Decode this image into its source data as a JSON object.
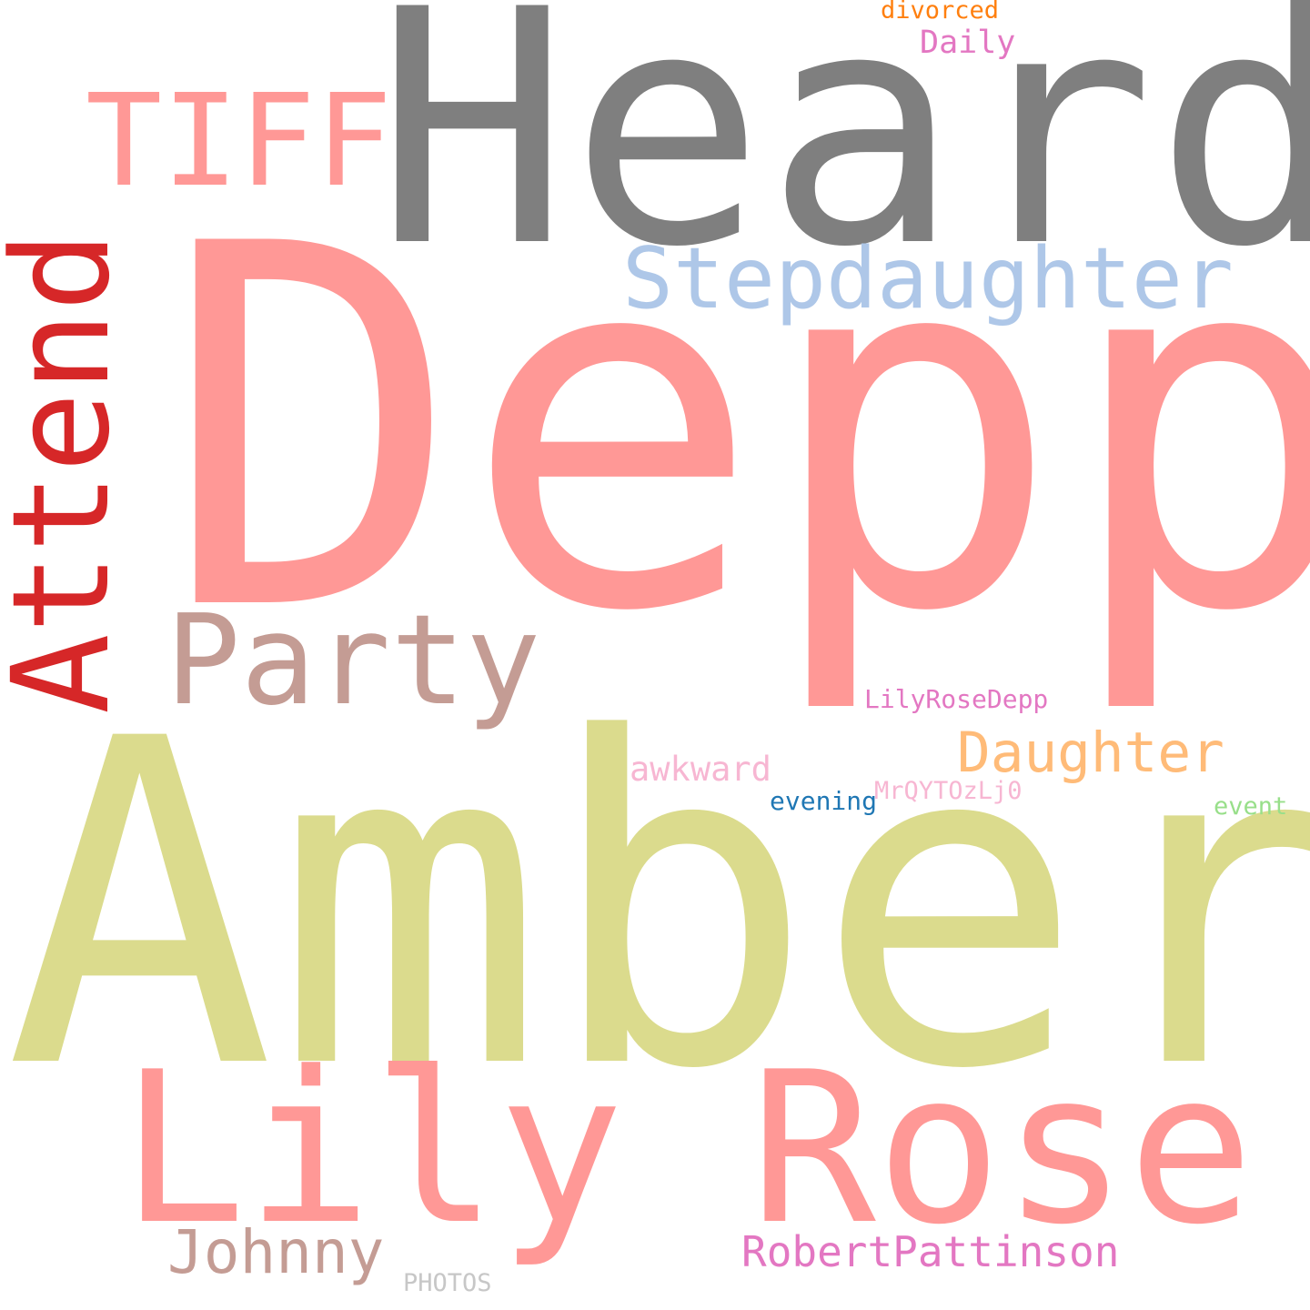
{
  "words": [
    {
      "id": "heard",
      "text": "Heard",
      "color": "#7f7f7f"
    },
    {
      "id": "depp",
      "text": "Depp",
      "color": "#ff9896"
    },
    {
      "id": "amber",
      "text": "Amber",
      "color": "#dbdb8d"
    },
    {
      "id": "lily-rose",
      "text": "Lily Rose",
      "color": "#ff9896"
    },
    {
      "id": "attend",
      "text": "Attend",
      "color": "#d62728"
    },
    {
      "id": "tiff",
      "text": "TIFF",
      "color": "#ff9896"
    },
    {
      "id": "stepdaughter",
      "text": "Stepdaughter",
      "color": "#aec7e8"
    },
    {
      "id": "party",
      "text": "Party",
      "color": "#c49c94"
    },
    {
      "id": "daughter",
      "text": "Daughter",
      "color": "#ffbb78"
    },
    {
      "id": "johnny",
      "text": "Johnny",
      "color": "#c49c94"
    },
    {
      "id": "robertpattinson",
      "text": "RobertPattinson",
      "color": "#e377c2"
    },
    {
      "id": "lilyrosedepp",
      "text": "LilyRoseDepp",
      "color": "#e377c2"
    },
    {
      "id": "awkward",
      "text": "awkward",
      "color": "#f7b6d2"
    },
    {
      "id": "evening",
      "text": "evening",
      "color": "#1f77b4"
    },
    {
      "id": "mrqytozlj0",
      "text": "MrQYTOzLj0",
      "color": "#f7b6d2"
    },
    {
      "id": "event",
      "text": "event",
      "color": "#98df8a"
    },
    {
      "id": "divorced",
      "text": "divorced",
      "color": "#ff7f0e"
    },
    {
      "id": "daily",
      "text": "Daily",
      "color": "#e377c2"
    },
    {
      "id": "photos",
      "text": "PHOTOS",
      "color": "#c7c7c7"
    }
  ]
}
